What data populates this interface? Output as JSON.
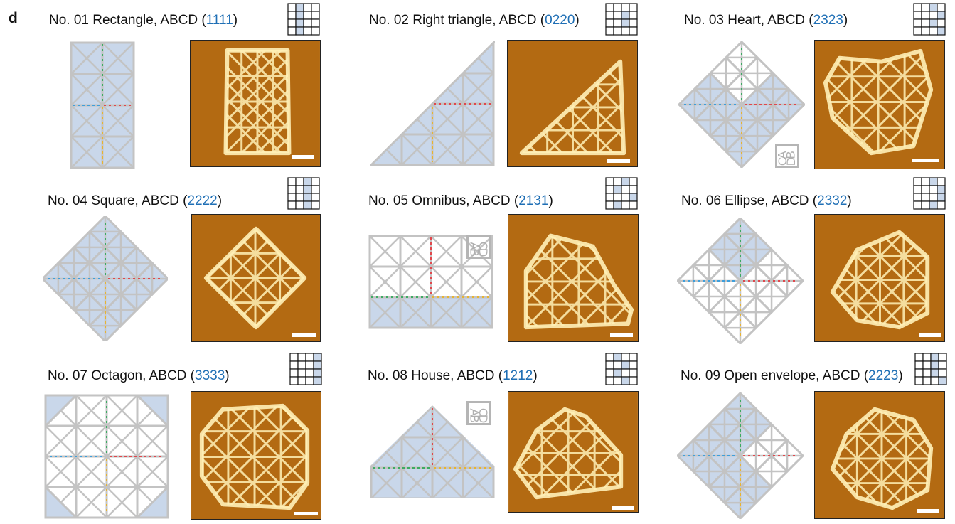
{
  "panel_letter": "d",
  "orientation_label": {
    "a": "A",
    "b": "B",
    "c": "C",
    "d": "D"
  },
  "colors": {
    "tile_fill": "#c9d7ea",
    "tile_stroke": "#c3c3c3",
    "code_blue": "#1f6fb5",
    "afm_background": "#b36a12",
    "afm_bright": "#fff1b8",
    "staple_green": "#3cab62",
    "staple_blue": "#3d9fdc",
    "staple_red": "#e0474c",
    "staple_yellow": "#e8b431"
  },
  "items": [
    {
      "title": "No. 01 Rectangle, ABCD (",
      "code": "1111",
      "close": ")"
    },
    {
      "title": "No. 02 Right triangle, ABCD (",
      "code": "0220",
      "close": ")"
    },
    {
      "title": "No. 03 Heart, ABCD (",
      "code": "2323",
      "close": ")"
    },
    {
      "title": "No. 04 Square, ABCD (",
      "code": "2222",
      "close": ")"
    },
    {
      "title": "No. 05 Omnibus, ABCD (",
      "code": "2131",
      "close": ")"
    },
    {
      "title": "No. 06 Ellipse, ABCD (",
      "code": "2332",
      "close": ")"
    },
    {
      "title": "No. 07 Octagon, ABCD (",
      "code": "3333",
      "close": ")"
    },
    {
      "title": "No. 08 House, ABCD (",
      "code": "1212",
      "close": ")"
    },
    {
      "title": "No. 09 Open envelope, ABCD (",
      "code": "2223",
      "close": ")"
    }
  ]
}
